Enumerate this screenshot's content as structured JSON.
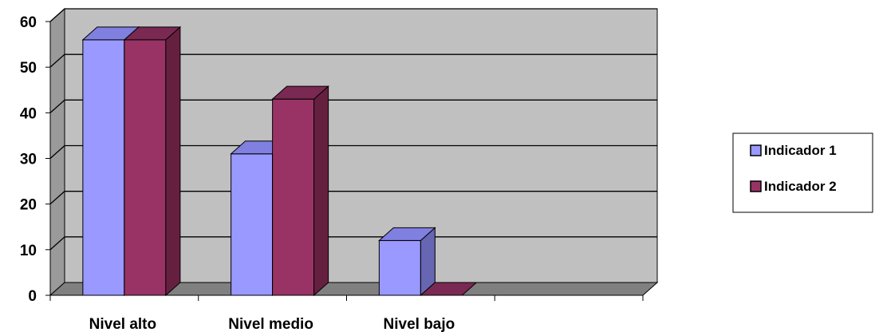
{
  "chart_data": {
    "type": "bar",
    "style": "3d-clustered",
    "categories": [
      "Nivel alto",
      "Nivel medio",
      "Nivel bajo",
      ""
    ],
    "series": [
      {
        "name": "Indicador 1",
        "values": [
          56,
          31,
          12,
          null
        ],
        "color": "#9999FF",
        "top_color": "#8080E0",
        "side_color": "#6666B3"
      },
      {
        "name": "Indicador 2",
        "values": [
          56,
          43,
          0,
          null
        ],
        "color": "#993366",
        "top_color": "#7A2952",
        "side_color": "#66203F"
      }
    ],
    "ylim": [
      0,
      60
    ],
    "yticks": [
      0,
      10,
      20,
      30,
      40,
      50,
      60
    ],
    "grid": true,
    "wall_color": "#C0C0C0",
    "floor_color": "#808080",
    "legend": "right"
  }
}
